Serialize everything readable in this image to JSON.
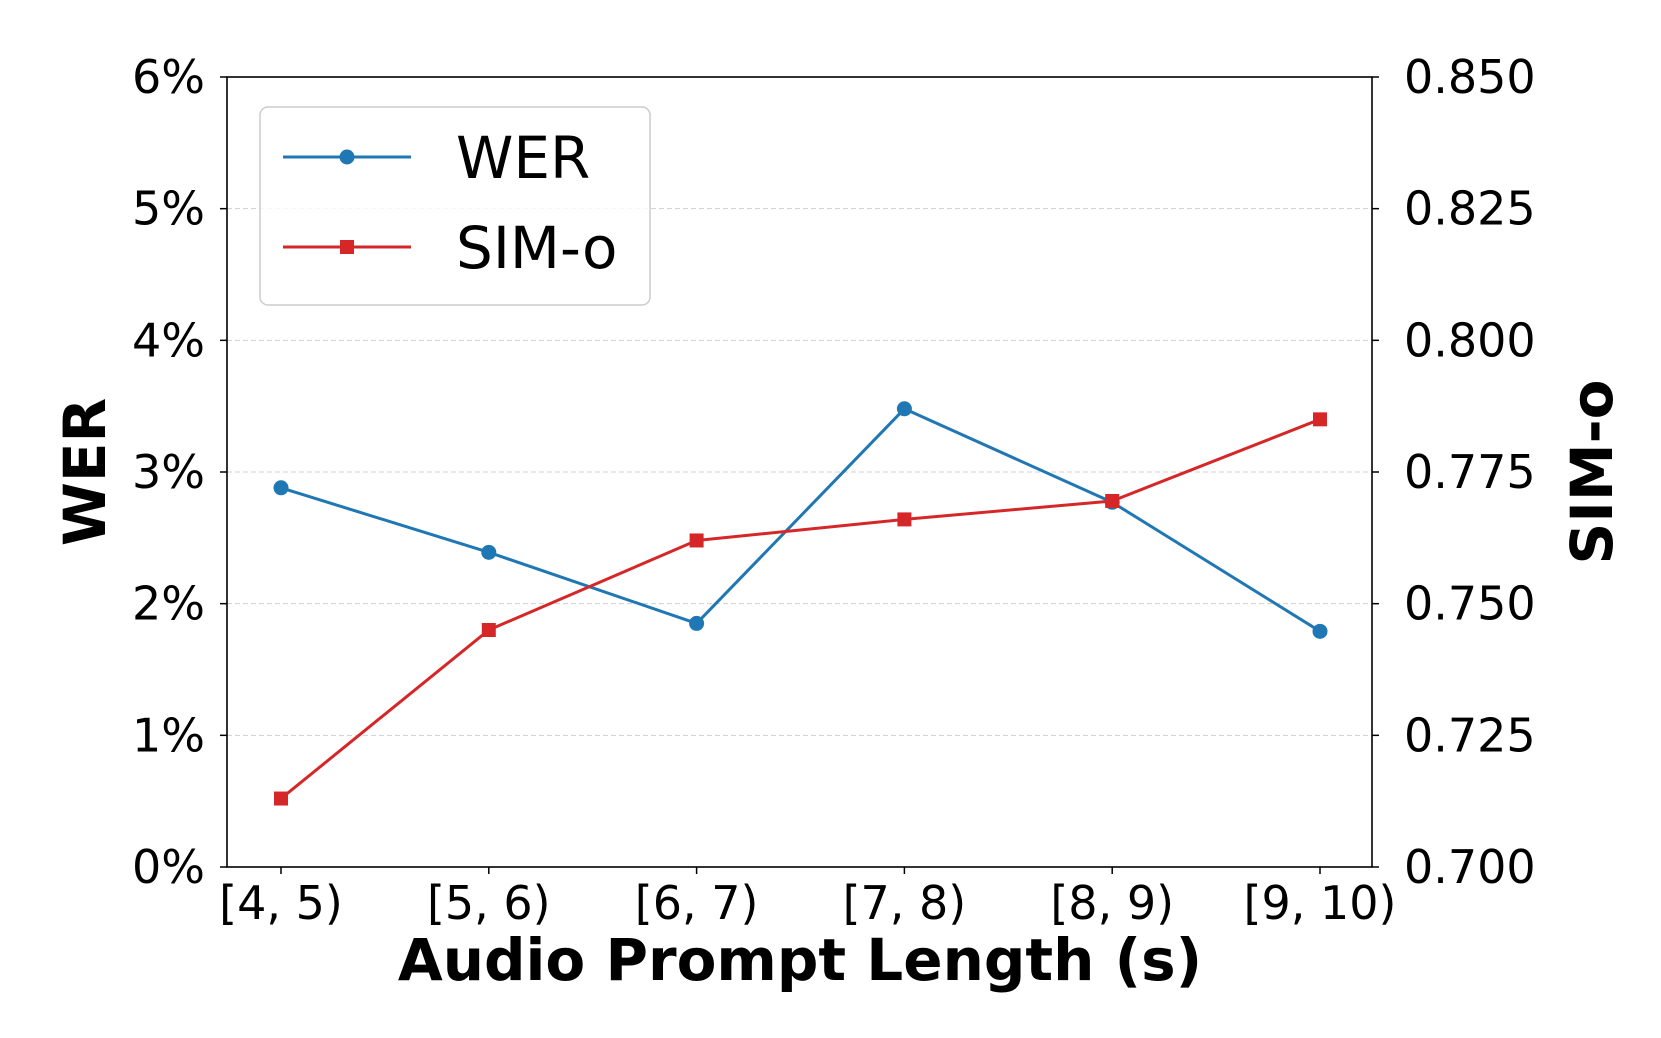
{
  "chart_data": {
    "type": "line",
    "categories": [
      "[4, 5)",
      "[5, 6)",
      "[6, 7)",
      "[7, 8)",
      "[8, 9)",
      "[9, 10)"
    ],
    "series": [
      {
        "name": "WER",
        "axis": "left",
        "values": [
          2.88,
          2.39,
          1.85,
          3.48,
          2.77,
          1.79
        ],
        "color": "#1f77b4",
        "marker": "circle"
      },
      {
        "name": "SIM-o",
        "axis": "right",
        "values": [
          0.713,
          0.745,
          0.762,
          0.766,
          0.7695,
          0.785
        ],
        "color": "#d62728",
        "marker": "square"
      }
    ],
    "xlabel": "Audio Prompt Length (s)",
    "ylabel": "WER",
    "y2label": "SIM-o",
    "ylim": [
      0,
      6
    ],
    "y2lim": [
      0.7,
      0.85
    ],
    "yticks": [
      "0%",
      "1%",
      "2%",
      "3%",
      "4%",
      "5%",
      "6%"
    ],
    "y2ticks": [
      "0.700",
      "0.725",
      "0.750",
      "0.775",
      "0.800",
      "0.825",
      "0.850"
    ],
    "grid": "horizontal dashed",
    "legend": "top-left"
  }
}
